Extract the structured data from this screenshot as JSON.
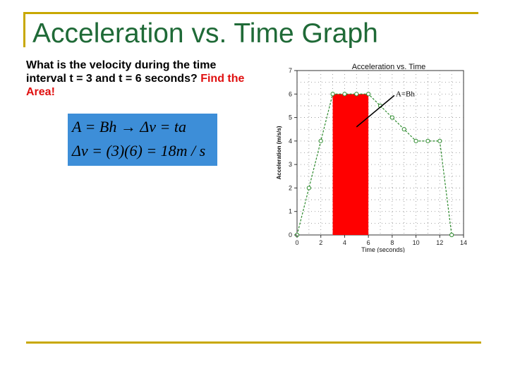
{
  "slide": {
    "title": "Acceleration vs. Time Graph",
    "question": "What is the velocity during the time interval t = 3 and t = 6 seconds?",
    "question_highlight": "Find the Area!",
    "formula_line1": "A = Bh → Δv = ta",
    "formula_line2": "Δv = (3)(6) = 18m / s"
  },
  "colors": {
    "title": "#1f6a37",
    "rule": "#c8a800",
    "highlight": "#e01010",
    "formula_bg": "#3d8ed8",
    "shaded_area": "#ff0000",
    "series": "#2e8b2e"
  },
  "chart_data": {
    "type": "line",
    "title": "Acceleration vs. Time",
    "xlabel": "Time (seconds)",
    "ylabel": "Acceleration (m/s/s)",
    "xlim": [
      0,
      14
    ],
    "ylim": [
      0,
      7
    ],
    "x_ticks": [
      0,
      2,
      4,
      6,
      8,
      10,
      12,
      14
    ],
    "x_tick_labels": [
      "0",
      "2",
      "4",
      "6",
      "8",
      "10",
      "12",
      "14"
    ],
    "y_ticks": [
      0,
      1,
      2,
      3,
      4,
      5,
      6,
      7
    ],
    "y_tick_labels": [
      "0",
      "1",
      "2",
      "3",
      "4",
      "5",
      "6",
      "7"
    ],
    "grid": true,
    "series": [
      {
        "x": [
          0,
          1,
          2,
          3,
          4,
          5,
          6,
          7,
          8,
          9,
          10,
          11,
          12,
          13
        ],
        "y": [
          0,
          2,
          4,
          6,
          6,
          6,
          6,
          5.5,
          5,
          4.5,
          4,
          4,
          4,
          0
        ],
        "color": "#2e8b2e",
        "style": "dashed",
        "marker": "circle"
      }
    ],
    "shaded_region": {
      "x_start": 3,
      "x_end": 6,
      "y": 6,
      "color": "#ff0000"
    },
    "annotation": {
      "text": "A=Bh",
      "x": 8.3,
      "y": 6,
      "arrow_to_x": 5,
      "arrow_to_y": 4.6
    }
  }
}
